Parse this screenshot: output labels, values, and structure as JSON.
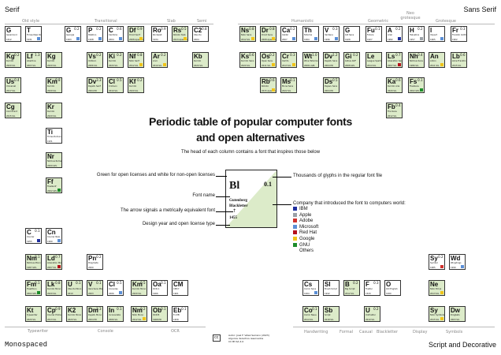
{
  "corners": {
    "serif": "Serif",
    "sans_serif": "Sans Serif",
    "monospaced": "Monospaced",
    "script": "Script and Decorative"
  },
  "families": {
    "old_style": "Old style",
    "transitional": "Transitional",
    "slab": "Slab",
    "semi": "Semi",
    "humanistic": "Humanistic",
    "geometric": "Geometric",
    "neo_grotesque": "Neo grotesque",
    "grotesque": "Grotesque",
    "typewriter": "Typewriter",
    "console": "Console",
    "ocr": "OCR",
    "handwriting": "Handwriting",
    "formal": "Formal",
    "casual": "Casual",
    "blackletter": "Blackletter",
    "display": "Display",
    "symbols": "Symbols"
  },
  "title_lines": [
    "Periodic table of popular computer fonts",
    "and open alternatives"
  ],
  "subtitle": "The head of each column contains a font that inspires those below",
  "key": {
    "left_labels": [
      "Green for open licenses and white for non-open licenses",
      "Font name",
      "The arrow signals a metrically equivalent font",
      "Design year and open license type"
    ],
    "right_label": "Thousands of glyphs in the regular font file",
    "sample": {
      "symbol": "Bl",
      "number": "0.1",
      "name": "Gutenberg",
      "name2": "Blackletter",
      "arrow": "↑",
      "year": "1455"
    },
    "company_title": "Company that introduced the font to computers world:",
    "companies": [
      {
        "name": "IBM",
        "color": "#1f2f9e"
      },
      {
        "name": "Apple",
        "color": "#9aa0a6"
      },
      {
        "name": "Adobe",
        "color": "#d0312d"
      },
      {
        "name": "Microsoft",
        "color": "#5b8fd6"
      },
      {
        "name": "Red Hat",
        "color": "#b5121b"
      },
      {
        "name": "Google",
        "color": "#f0c419"
      },
      {
        "name": "GNU",
        "color": "#1c8c2a"
      },
      {
        "name": "Others",
        "color": "#ffffff"
      }
    ]
  },
  "footer": {
    "line1": "Autor: José F. Vélez Serrano (2023)",
    "line2": "Algunos derechos reservados",
    "line3": "CC BY-SA 4.0",
    "cc": "cc"
  },
  "cells": [
    {
      "s": "G",
      "n": "",
      "nm": "Garamond",
      "yr": "1612",
      "c": "#fff",
      "g": false
    },
    {
      "s": "T",
      "n": "",
      "nm": "Times New Roman",
      "yr": "1931",
      "c": "#5b8fd6",
      "g": false
    },
    {
      "s": "G",
      "n": "0.2",
      "nm": "Georgia",
      "yr": "1993",
      "c": "#5b8fd6",
      "g": false
    },
    {
      "s": "P",
      "n": "0.2",
      "nm": "Palatino",
      "yr": "1948",
      "c": "#5b8fd6",
      "g": false
    },
    {
      "s": "C",
      "n": "0.6",
      "nm": "Cambria",
      "yr": "2004",
      "c": "#5b8fd6",
      "g": false
    },
    {
      "s": "Df",
      "n": "0.9",
      "nm": "Droid Serif",
      "yr": "2008 Apache2",
      "c": "#f0c419",
      "g": true
    },
    {
      "s": "Ro",
      "n": "0.9",
      "nm": "Rockwell",
      "yr": "1934",
      "c": "#fff",
      "g": false
    },
    {
      "s": "Rs",
      "n": "0.5",
      "nm": "Roboto Slab",
      "yr": "2013 Apache2",
      "c": "#f0c419",
      "g": true
    },
    {
      "s": "C2",
      "n": "0.8",
      "nm": "Ubuntu",
      "yr": "2004",
      "c": "#fff",
      "g": false
    },
    {
      "s": "Kg",
      "n": "0.2",
      "nm": "Kurinto",
      "yr": "2020 SIL",
      "c": "#fff",
      "g": true
    },
    {
      "s": "Lf",
      "n": "1.3",
      "nm": "Libertine",
      "yr": "2003 SIL",
      "c": "#fff",
      "g": true
    },
    {
      "s": "Kg",
      "n": "",
      "nm": "Kurinto",
      "yr": "2020 SIL",
      "c": "#fff",
      "g": true
    },
    {
      "s": "Vs",
      "n": "0.2",
      "nm": "Vollkorn",
      "yr": "2006 SIL",
      "c": "#fff",
      "g": true
    },
    {
      "s": "Ki",
      "n": "0.2",
      "nm": "Kurinto",
      "yr": "2020 SIL",
      "c": "#fff",
      "g": true
    },
    {
      "s": "Nf",
      "n": "0.8",
      "nm": "Noto Serif",
      "yr": "2012 SIL",
      "c": "#f0c419",
      "g": true
    },
    {
      "s": "Ar",
      "n": "0.2",
      "nm": "Arvo",
      "yr": "2010 SIL",
      "c": "#f0c419",
      "g": true
    },
    {
      "s": "Kb",
      "n": "",
      "nm": "Kurinto",
      "yr": "2020 SIL",
      "c": "#fff",
      "g": true
    },
    {
      "s": "Us",
      "n": "0.4",
      "nm": "Universal",
      "yr": "2017 SIL",
      "c": "#fff",
      "g": true
    },
    {
      "s": "Km",
      "n": "0.8",
      "nm": "Kurinto",
      "yr": "2020 SIL",
      "c": "#fff",
      "g": true
    },
    {
      "s": "Dv",
      "n": "3.3",
      "nm": "DejaVu Serif",
      "yr": "2004 PD",
      "c": "#fff",
      "g": true
    },
    {
      "s": "Cl",
      "n": "0.5",
      "nm": "Crimson",
      "yr": "2010 SIL",
      "c": "#fff",
      "g": true
    },
    {
      "s": "Kf",
      "n": "0.2",
      "nm": "Kurinto",
      "yr": "2020 SIL",
      "c": "#fff",
      "g": true
    },
    {
      "s": "Cg",
      "n": "",
      "nm": "Cormorant",
      "yr": "2015 SIL",
      "c": "#fff",
      "g": true
    },
    {
      "s": "Kr",
      "n": "",
      "nm": "Kurinto",
      "yr": "2020 SIL",
      "c": "#fff",
      "g": true
    },
    {
      "s": "Ti",
      "n": "",
      "nm": "Times Roman",
      "yr": "1931",
      "c": "#fff",
      "g": false
    },
    {
      "s": "Nr",
      "n": "",
      "nm": "Nimbus Roman",
      "yr": "2000 GPL",
      "c": "#fff",
      "g": true
    },
    {
      "s": "Ff",
      "n": "",
      "nm": "FreeSerif",
      "yr": "2002 GPL",
      "c": "#1c8c2a",
      "g": true
    },
    {
      "s": "Ns",
      "n": "0.8",
      "nm": "Noto Sans",
      "yr": "2012 SIL",
      "c": "#f0c419",
      "g": true
    },
    {
      "s": "Dr",
      "n": "0.8",
      "nm": "Droid Sans",
      "yr": "2008 Apache2",
      "c": "#f0c419",
      "g": true
    },
    {
      "s": "Ca",
      "n": "0.2",
      "nm": "Calibri",
      "yr": "2007",
      "c": "#5b8fd6",
      "g": false
    },
    {
      "s": "Th",
      "n": "",
      "nm": "Tahoma",
      "yr": "1994",
      "c": "#5b8fd6",
      "g": false
    },
    {
      "s": "V",
      "n": "0.3",
      "nm": "Verdana",
      "yr": "1996",
      "c": "#5b8fd6",
      "g": false
    },
    {
      "s": "G",
      "n": "",
      "nm": "Gill Sans",
      "yr": "1928",
      "c": "#fff",
      "g": false
    },
    {
      "s": "Fu",
      "n": "0.1",
      "nm": "Futura",
      "yr": "1927",
      "c": "#fff",
      "g": false
    },
    {
      "s": "A",
      "n": "0.2",
      "nm": "Arial",
      "yr": "1982",
      "c": "#1f2f9e",
      "g": false
    },
    {
      "s": "H",
      "n": "0.2",
      "nm": "Helvetica",
      "yr": "1957",
      "c": "#9aa0a6",
      "g": false
    },
    {
      "s": "I",
      "n": "",
      "nm": "Impact",
      "yr": "1965",
      "c": "#5b8fd6",
      "g": false
    },
    {
      "s": "Fr",
      "n": "0.3",
      "nm": "Franklin Gothic",
      "yr": "1902",
      "c": "#fff",
      "g": false
    },
    {
      "s": "Ks",
      "n": "0.6",
      "nm": "Kurinto Sans",
      "yr": "2020 SIL",
      "c": "#fff",
      "g": true
    },
    {
      "s": "Os",
      "n": "0.2",
      "nm": "Open Sans",
      "yr": "2011 SIL",
      "c": "#f0c419",
      "g": true
    },
    {
      "s": "Cr",
      "n": "0.3",
      "nm": "Carlito",
      "yr": "2013 SIL",
      "c": "#f0c419",
      "g": true
    },
    {
      "s": "Wt",
      "n": "1.0",
      "nm": "Wine Tahoma",
      "yr": "2006 LGPL",
      "c": "#fff",
      "g": true
    },
    {
      "s": "Dv",
      "n": "1.2",
      "nm": "DejaVu Sans",
      "yr": "2004 PD",
      "c": "#fff",
      "g": true
    },
    {
      "s": "Gi",
      "n": "0.2",
      "nm": "Gillius ADF",
      "yr": "2008 GPL",
      "c": "#fff",
      "g": true
    },
    {
      "s": "Le",
      "n": "",
      "nm": "League Spartan",
      "yr": "2014 SIL",
      "c": "#fff",
      "g": true
    },
    {
      "s": "Ls",
      "n": "0.7",
      "nm": "Liberation Sans",
      "yr": "2007 SIL",
      "c": "#b5121b",
      "g": true
    },
    {
      "s": "Nh",
      "n": "0.4",
      "nm": "Nimbus Sans",
      "yr": "1986 SIL",
      "c": "#fff",
      "g": true
    },
    {
      "s": "An",
      "n": "",
      "nm": "Anton",
      "yr": "2011 SIL",
      "c": "#f0c419",
      "g": true
    },
    {
      "s": "Lb",
      "n": "0.6",
      "nm": "Libre Franklin",
      "yr": "2015 SIL",
      "c": "#fff",
      "g": true
    },
    {
      "s": "Rb",
      "n": "0.6",
      "nm": "Roboto",
      "yr": "2015 Apache2",
      "c": "#f0c419",
      "g": true
    },
    {
      "s": "Ms",
      "n": "0.1",
      "nm": "Mona Sans",
      "yr": "2022 SIL",
      "c": "#fff",
      "g": true
    },
    {
      "s": "Ds",
      "n": "0.5",
      "nm": "Dejavu Sans",
      "yr": "2004 PD",
      "c": "#fff",
      "g": true
    },
    {
      "s": "Ka",
      "n": "0.6",
      "nm": "Kurinto Aria",
      "yr": "2020 SIL",
      "c": "#fff",
      "g": true
    },
    {
      "s": "Fs",
      "n": "0.1",
      "nm": "FreeSans",
      "yr": "2002 GPL",
      "c": "#1c8c2a",
      "g": true
    },
    {
      "s": "Fb",
      "n": "0.4",
      "nm": "Fira Sans",
      "yr": "2012 SIL",
      "c": "#fff",
      "g": true
    },
    {
      "s": "C",
      "n": "0.1",
      "nm": "Courier",
      "yr": "1955",
      "c": "#1f2f9e",
      "g": false
    },
    {
      "s": "Cn",
      "n": "",
      "nm": "Courier New",
      "yr": "1990",
      "c": "#5b8fd6",
      "g": false
    },
    {
      "s": "Nm",
      "n": "0.1",
      "nm": "Nimbus Mono",
      "yr": "1987 GPL",
      "c": "#fff",
      "g": true
    },
    {
      "s": "Ld",
      "n": "0.7",
      "nm": "Liberation Mono",
      "yr": "2007 SIL",
      "c": "#b5121b",
      "g": true
    },
    {
      "s": "Pn",
      "n": "0.2",
      "nm": "Pragmata",
      "yr": "2000",
      "c": "#fff",
      "g": false
    },
    {
      "s": "Fm",
      "n": "0.1",
      "nm": "FreeMono",
      "yr": "2002 GPL",
      "c": "#1c8c2a",
      "g": true
    },
    {
      "s": "Lk",
      "n": "0.8",
      "nm": "Kurinto Mono",
      "yr": "2020 SIL",
      "c": "#fff",
      "g": true
    },
    {
      "s": "U",
      "n": "0.1",
      "nm": "Ubuntu Mono",
      "yr": "2010",
      "c": "#fff",
      "g": true
    },
    {
      "s": "V",
      "n": "0.1",
      "nm": "Vera Sans Mono",
      "yr": "2003",
      "c": "#fff",
      "g": true
    },
    {
      "s": "Cl",
      "n": "0.5",
      "nm": "Consolas",
      "yr": "2006",
      "c": "#5b8fd6",
      "g": false
    },
    {
      "s": "Km",
      "n": "0.5",
      "nm": "Kurinto Mono",
      "yr": "2020 SIL",
      "c": "#fff",
      "g": true
    },
    {
      "s": "Oa",
      "n": "0.1",
      "nm": "OCR A",
      "yr": "1966",
      "c": "#fff",
      "g": false
    },
    {
      "s": "CM",
      "n": "",
      "nm": "CMC7",
      "yr": "1961",
      "c": "#fff",
      "g": false
    },
    {
      "s": "Kt",
      "n": "",
      "nm": "Typewriter",
      "yr": "2020 SIL",
      "c": "#fff",
      "g": true
    },
    {
      "s": "Cp",
      "n": "0.9",
      "nm": "Courier Prime",
      "yr": "2013 SIL",
      "c": "#fff",
      "g": true
    },
    {
      "s": "K2",
      "n": "",
      "nm": "Kurinto Mono",
      "yr": "2020 SIL",
      "c": "#fff",
      "g": true
    },
    {
      "s": "Dm",
      "n": "3.3",
      "nm": "DejaVu Mono",
      "yr": "2004 PD",
      "c": "#fff",
      "g": true
    },
    {
      "s": "In",
      "n": "0.1",
      "nm": "Inconsolata",
      "yr": "2006 SIL",
      "c": "#fff",
      "g": true
    },
    {
      "s": "Nm",
      "n": "0.2",
      "nm": "Noto Mono",
      "yr": "2012 SIL",
      "c": "#f0c419",
      "g": true
    },
    {
      "s": "Ob",
      "n": "0.1",
      "nm": "OCR B",
      "yr": "1968 PD",
      "c": "#fff",
      "g": true
    },
    {
      "s": "Eb",
      "n": "0.1",
      "nm": "E-13B",
      "yr": "1958",
      "c": "#fff",
      "g": false
    },
    {
      "s": "Sy",
      "n": "0.2",
      "nm": "Symbol",
      "yr": "1985",
      "c": "#d0312d",
      "g": false
    },
    {
      "s": "Wd",
      "n": "",
      "nm": "Wingdings",
      "yr": "1990",
      "c": "#5b8fd6",
      "g": false
    },
    {
      "s": "Cs",
      "n": "",
      "nm": "Comic Sans",
      "yr": "1994",
      "c": "#5b8fd6",
      "g": false
    },
    {
      "s": "Sl",
      "n": "",
      "nm": "Brush Script",
      "yr": "1942",
      "c": "#fff",
      "g": false
    },
    {
      "s": "B",
      "n": "0.2",
      "nm": "Big Script",
      "yr": "2012 SIL",
      "c": "#fff",
      "g": true
    },
    {
      "s": "F",
      "n": "0.3",
      "nm": "Fraktur",
      "yr": "1520",
      "c": "#fff",
      "g": false
    },
    {
      "s": "O",
      "n": "",
      "nm": "Old English",
      "yr": "1990",
      "c": "#fff",
      "g": false
    },
    {
      "s": "Ne",
      "n": "",
      "nm": "Noto Emoji",
      "yr": "2013 SIL",
      "c": "#f0c419",
      "g": true
    },
    {
      "s": "Co",
      "n": "0.1",
      "nm": "Comic Neue",
      "yr": "2014 SIL",
      "c": "#fff",
      "g": true
    },
    {
      "s": "Sb",
      "n": "",
      "nm": "Script",
      "yr": "2018 SIL",
      "c": "#fff",
      "g": true
    },
    {
      "s": "U",
      "n": "0.2",
      "nm": "Unifraktur",
      "yr": "2010 SIL",
      "c": "#fff",
      "g": true
    },
    {
      "s": "Sy",
      "n": "",
      "nm": "Noto Symbols",
      "yr": "2015 SIL",
      "c": "#f0c419",
      "g": true
    },
    {
      "s": "Dw",
      "n": "",
      "nm": "Dingbats",
      "yr": "2003 SIL",
      "c": "#fff",
      "g": true
    }
  ]
}
